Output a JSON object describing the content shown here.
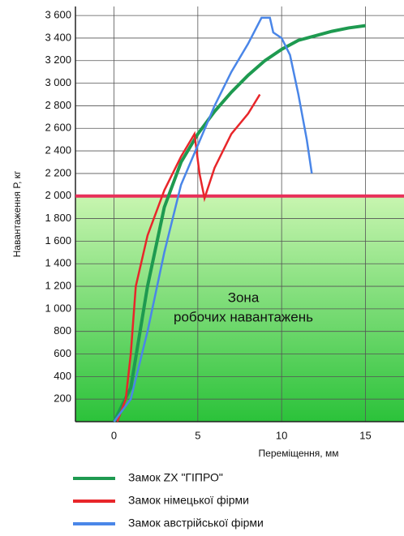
{
  "chart_data": {
    "type": "line",
    "y_label": "Навантаження Р, кг",
    "x_label": "Переміщення, мм",
    "zone_label": [
      "Зона",
      "робочих навантажень"
    ],
    "threshold": 2000,
    "threshold_color": "#e8305a",
    "xlim": [
      -2.3,
      17.3
    ],
    "xticks": [
      0,
      5,
      10,
      15
    ],
    "ylim": [
      0,
      3680
    ],
    "yticks": [
      200,
      400,
      600,
      800,
      {
        "value": 1000,
        "label": "1 000"
      },
      {
        "value": 1200,
        "label": "1 200"
      },
      {
        "value": 1400,
        "label": "1 400"
      },
      {
        "value": 1600,
        "label": "1 600"
      },
      {
        "value": 1800,
        "label": "1 800"
      },
      {
        "value": 2000,
        "label": "2 000"
      },
      {
        "value": 2200,
        "label": "2 200"
      },
      {
        "value": 2400,
        "label": "2 400"
      },
      {
        "value": 2600,
        "label": "2 600"
      },
      {
        "value": 2800,
        "label": "2 800"
      },
      {
        "value": 3000,
        "label": "3 000"
      },
      {
        "value": 3200,
        "label": "3 200"
      },
      {
        "value": 3400,
        "label": "3 400"
      },
      {
        "value": 3600,
        "label": "3 600"
      }
    ],
    "grid": true,
    "series": [
      {
        "name": "Замок ZX \"ГІПРО\"",
        "color": "#1e9a50",
        "x": [
          0,
          1,
          2,
          3,
          4,
          5,
          6,
          7,
          8,
          9,
          10,
          11,
          12,
          13,
          14,
          15
        ],
        "values": [
          0,
          300,
          1200,
          1900,
          2300,
          2550,
          2750,
          2920,
          3070,
          3200,
          3300,
          3380,
          3420,
          3460,
          3490,
          3510
        ]
      },
      {
        "name": "Замок німецької фірми",
        "color": "#e8262a",
        "x": [
          0.2,
          0.7,
          1.0,
          1.3,
          2,
          3,
          4,
          4.8,
          5.1,
          5.4,
          6,
          7,
          8,
          8.7
        ],
        "values": [
          0,
          200,
          600,
          1200,
          1650,
          2050,
          2350,
          2550,
          2200,
          1980,
          2250,
          2550,
          2730,
          2900
        ]
      },
      {
        "name": "Замок австрійської фірми",
        "color": "#4a86e8",
        "x": [
          0,
          1,
          2,
          3,
          4,
          5,
          6,
          7,
          8,
          8.8,
          9.3,
          9.5,
          10,
          10.5,
          11,
          11.5,
          11.8
        ],
        "values": [
          0,
          200,
          800,
          1500,
          2100,
          2450,
          2800,
          3100,
          3350,
          3580,
          3580,
          3450,
          3400,
          3250,
          2900,
          2500,
          2200
        ]
      }
    ]
  }
}
